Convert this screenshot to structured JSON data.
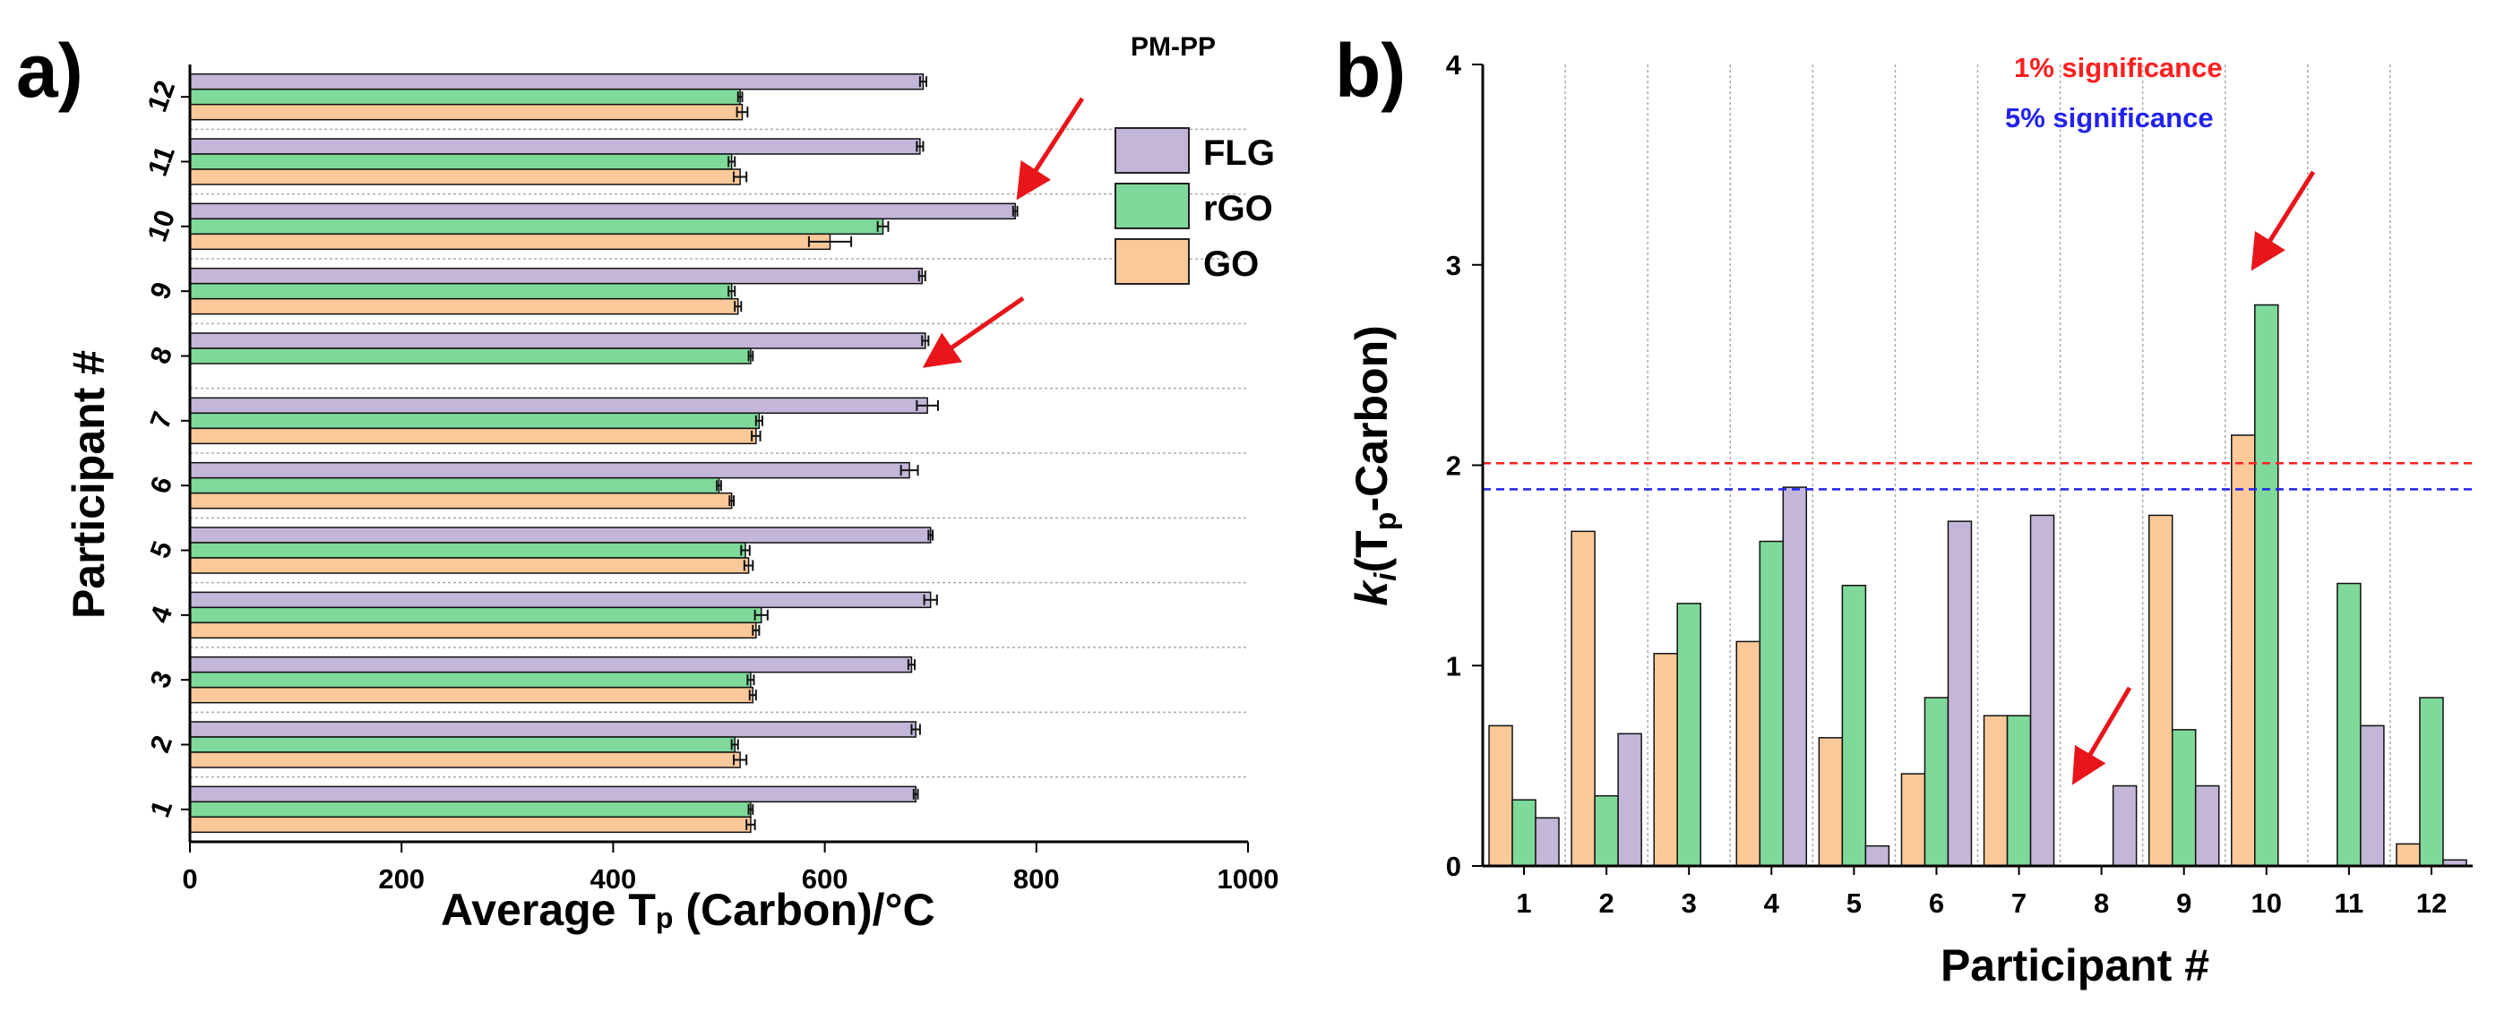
{
  "colors": {
    "FLG": "#c3b6d9",
    "rGO": "#7fd99a",
    "GO": "#fbc999",
    "arrow": "#e8151a",
    "sig1": "#ff1f1f",
    "sig5": "#2222ee"
  },
  "chart_data": [
    {
      "panel": "a)",
      "type": "bar",
      "orientation": "horizontal",
      "ylabel": "Participant #",
      "xlabel_main": "Average T",
      "xlabel_sub": "p",
      "xlabel_rest": " (Carbon)/°C",
      "xlim": [
        0,
        1000
      ],
      "xticks": [
        0,
        200,
        400,
        600,
        800,
        1000
      ],
      "categories": [
        "1",
        "2",
        "3",
        "4",
        "5",
        "6",
        "7",
        "8",
        "9",
        "10",
        "11",
        "12"
      ],
      "legend_title": "PM-PP",
      "series": [
        {
          "name": "FLG",
          "values": [
            686,
            686,
            682,
            700,
            700,
            680,
            697,
            695,
            692,
            780,
            690,
            693
          ],
          "errors": [
            2,
            4,
            3,
            6,
            2,
            8,
            10,
            3,
            3,
            2,
            3,
            3
          ]
        },
        {
          "name": "rGO",
          "values": [
            530,
            515,
            530,
            540,
            525,
            500,
            538,
            530,
            512,
            655,
            512,
            520
          ],
          "errors": [
            2,
            3,
            3,
            6,
            4,
            2,
            3,
            2,
            3,
            5,
            3,
            2
          ]
        },
        {
          "name": "GO",
          "values": [
            530,
            520,
            532,
            535,
            528,
            512,
            535,
            0,
            518,
            605,
            520,
            522
          ],
          "errors": [
            4,
            6,
            3,
            3,
            4,
            2,
            4,
            0,
            3,
            20,
            6,
            5
          ]
        }
      ],
      "annotations": [
        "arrow to participant 10",
        "arrow to participant 8"
      ]
    },
    {
      "panel": "b)",
      "type": "bar",
      "orientation": "vertical",
      "xlabel": "Participant #",
      "ylabel_k": "k",
      "ylabel_i": "i",
      "ylabel_open": "(T",
      "ylabel_sub": "p",
      "ylabel_rest": "-Carbon)",
      "ylim": [
        0,
        4
      ],
      "yticks": [
        "0",
        "1",
        "2",
        "3",
        "4"
      ],
      "categories": [
        "1",
        "2",
        "3",
        "4",
        "5",
        "6",
        "7",
        "8",
        "9",
        "10",
        "11",
        "12"
      ],
      "series": [
        {
          "name": "GO",
          "values": [
            0.7,
            1.67,
            1.06,
            1.12,
            0.64,
            0.46,
            0.75,
            0,
            1.75,
            2.15,
            0,
            0.11
          ]
        },
        {
          "name": "rGO",
          "values": [
            0.33,
            0.35,
            1.31,
            1.62,
            1.4,
            0.84,
            0.75,
            0,
            0.68,
            2.8,
            1.41,
            0.84
          ]
        },
        {
          "name": "FLG",
          "values": [
            0.24,
            0.66,
            0,
            1.89,
            0.1,
            1.72,
            1.75,
            0.4,
            0.4,
            0,
            0.7,
            0.03
          ]
        }
      ],
      "thresholds": [
        {
          "label": "1% significance",
          "value": 2.01
        },
        {
          "label": "5% significance",
          "value": 1.88
        }
      ],
      "annotations": [
        "arrow to participant 10",
        "arrow to participant 8"
      ]
    }
  ]
}
